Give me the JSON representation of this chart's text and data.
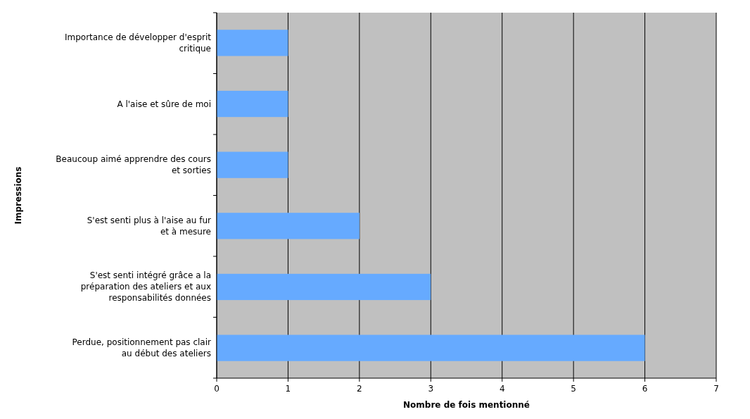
{
  "chart_data": {
    "type": "bar",
    "orientation": "horizontal",
    "xlabel": "Nombre de fois mentionné",
    "ylabel": "Impressions",
    "categories": [
      "Importance de développer d'esprit critique",
      "A l'aise et sûre de moi",
      "Beaucoup aimé apprendre des cours et sorties",
      "S'est senti plus à l'aise au fur et à mesure",
      "S'est senti intégré grâce a la préparation des ateliers et aux responsabilités données",
      "Perdue, positionnement pas clair au début des ateliers"
    ],
    "values": [
      1,
      1,
      1,
      2,
      3,
      6
    ],
    "color": "#66aaff",
    "xlim": [
      0,
      7
    ],
    "xticks": [
      0,
      1,
      2,
      3,
      4,
      5,
      6,
      7
    ],
    "grid": "x"
  }
}
